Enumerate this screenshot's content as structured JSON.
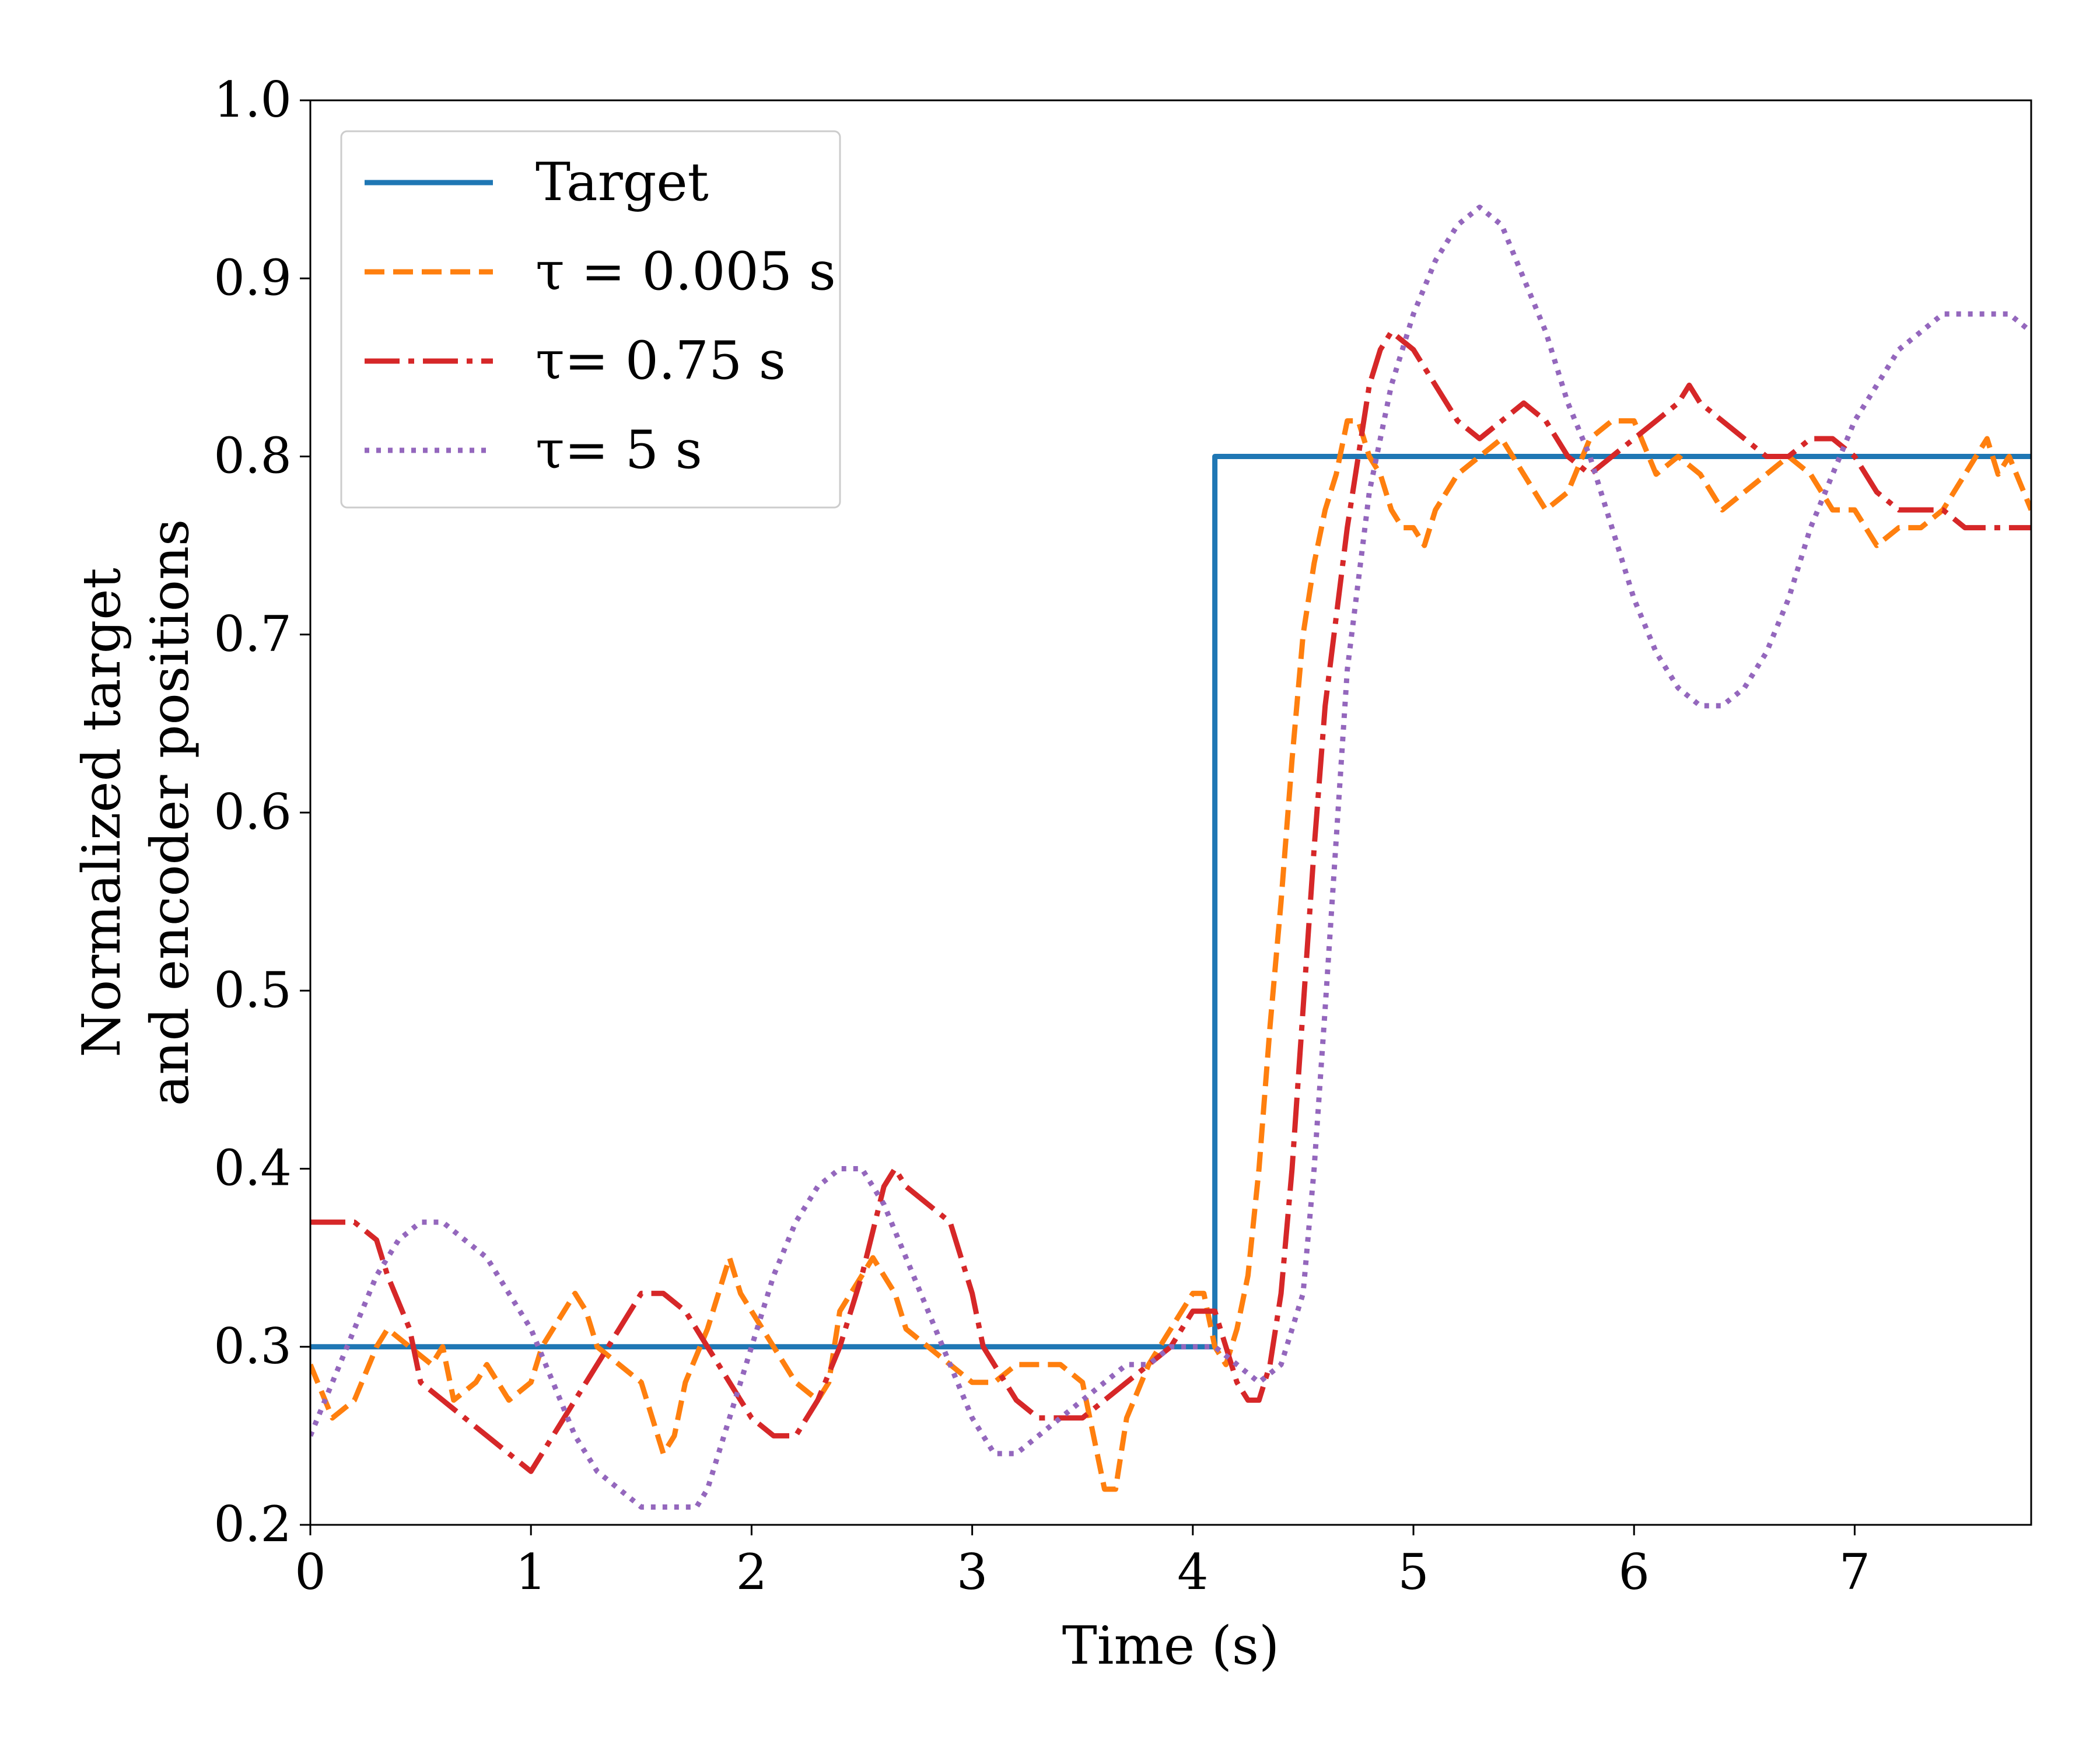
{
  "chart_data": {
    "type": "line",
    "title": "",
    "xlabel": "Time (s)",
    "ylabel": [
      "Normalized target",
      "and encoder positions"
    ],
    "xlim": [
      0,
      7.8
    ],
    "ylim": [
      0.2,
      1.0
    ],
    "xticks": [
      0,
      1,
      2,
      3,
      4,
      5,
      6,
      7
    ],
    "xtick_labels": [
      "0",
      "1",
      "2",
      "3",
      "4",
      "5",
      "6",
      "7"
    ],
    "yticks": [
      0.2,
      0.3,
      0.4,
      0.5,
      0.6,
      0.7,
      0.8,
      0.9,
      1.0
    ],
    "ytick_labels": [
      "0.2",
      "0.3",
      "0.4",
      "0.5",
      "0.6",
      "0.7",
      "0.8",
      "0.9",
      "1.0"
    ],
    "legend_position": "top-left",
    "series": [
      {
        "name": "Target",
        "legend_label": "Target",
        "color": "#1f77b4",
        "style": "solid",
        "x": [
          0,
          4.1,
          4.1,
          7.8
        ],
        "y": [
          0.3,
          0.3,
          0.8,
          0.8
        ]
      },
      {
        "name": "tau-0.005",
        "legend_label": "τ = 0.005 s",
        "color": "#ff7f0e",
        "style": "dashed",
        "x": [
          0,
          0.1,
          0.2,
          0.3,
          0.35,
          0.45,
          0.55,
          0.6,
          0.65,
          0.75,
          0.8,
          0.9,
          1.0,
          1.05,
          1.1,
          1.2,
          1.25,
          1.3,
          1.4,
          1.5,
          1.55,
          1.6,
          1.65,
          1.7,
          1.8,
          1.85,
          1.9,
          1.95,
          2.0,
          2.1,
          2.2,
          2.3,
          2.35,
          2.4,
          2.5,
          2.55,
          2.6,
          2.65,
          2.7,
          2.8,
          2.9,
          3.0,
          3.1,
          3.2,
          3.3,
          3.4,
          3.5,
          3.55,
          3.6,
          3.65,
          3.7,
          3.8,
          3.9,
          4.0,
          4.05,
          4.1,
          4.15,
          4.2,
          4.25,
          4.3,
          4.35,
          4.4,
          4.45,
          4.5,
          4.55,
          4.6,
          4.65,
          4.7,
          4.75,
          4.8,
          4.85,
          4.9,
          4.95,
          5.0,
          5.05,
          5.1,
          5.2,
          5.3,
          5.4,
          5.5,
          5.6,
          5.7,
          5.8,
          5.9,
          6.0,
          6.1,
          6.2,
          6.3,
          6.4,
          6.5,
          6.6,
          6.7,
          6.8,
          6.9,
          7.0,
          7.1,
          7.2,
          7.3,
          7.4,
          7.5,
          7.55,
          7.6,
          7.65,
          7.7,
          7.8
        ],
        "y": [
          0.29,
          0.26,
          0.27,
          0.3,
          0.31,
          0.3,
          0.29,
          0.3,
          0.27,
          0.28,
          0.29,
          0.27,
          0.28,
          0.3,
          0.31,
          0.33,
          0.32,
          0.3,
          0.29,
          0.28,
          0.26,
          0.24,
          0.25,
          0.28,
          0.31,
          0.33,
          0.35,
          0.33,
          0.32,
          0.3,
          0.28,
          0.27,
          0.28,
          0.32,
          0.34,
          0.35,
          0.34,
          0.33,
          0.31,
          0.3,
          0.29,
          0.28,
          0.28,
          0.29,
          0.29,
          0.29,
          0.28,
          0.25,
          0.22,
          0.22,
          0.26,
          0.29,
          0.31,
          0.33,
          0.33,
          0.3,
          0.29,
          0.31,
          0.34,
          0.4,
          0.48,
          0.55,
          0.63,
          0.7,
          0.74,
          0.77,
          0.79,
          0.82,
          0.82,
          0.8,
          0.79,
          0.77,
          0.76,
          0.76,
          0.75,
          0.77,
          0.79,
          0.8,
          0.81,
          0.79,
          0.77,
          0.78,
          0.81,
          0.82,
          0.82,
          0.79,
          0.8,
          0.79,
          0.77,
          0.78,
          0.79,
          0.8,
          0.79,
          0.77,
          0.77,
          0.75,
          0.76,
          0.76,
          0.77,
          0.79,
          0.8,
          0.81,
          0.79,
          0.8,
          0.77
        ]
      },
      {
        "name": "tau-0.75",
        "legend_label": "τ= 0.75 s",
        "color": "#d62728",
        "style": "dashdot",
        "x": [
          0,
          0.1,
          0.2,
          0.3,
          0.35,
          0.45,
          0.5,
          0.6,
          0.7,
          0.8,
          0.9,
          1.0,
          1.05,
          1.1,
          1.2,
          1.3,
          1.4,
          1.5,
          1.6,
          1.7,
          1.8,
          1.9,
          2.0,
          2.1,
          2.2,
          2.3,
          2.4,
          2.5,
          2.6,
          2.65,
          2.7,
          2.8,
          2.9,
          3.0,
          3.05,
          3.1,
          3.2,
          3.3,
          3.4,
          3.5,
          3.6,
          3.7,
          3.8,
          3.9,
          4.0,
          4.1,
          4.15,
          4.2,
          4.25,
          4.3,
          4.35,
          4.4,
          4.45,
          4.5,
          4.55,
          4.6,
          4.65,
          4.7,
          4.75,
          4.8,
          4.85,
          4.9,
          5.0,
          5.1,
          5.2,
          5.3,
          5.4,
          5.5,
          5.6,
          5.7,
          5.8,
          5.9,
          6.0,
          6.1,
          6.2,
          6.25,
          6.3,
          6.4,
          6.5,
          6.6,
          6.7,
          6.8,
          6.9,
          7.0,
          7.1,
          7.2,
          7.3,
          7.4,
          7.5,
          7.6,
          7.7,
          7.8
        ],
        "y": [
          0.37,
          0.37,
          0.37,
          0.36,
          0.34,
          0.31,
          0.28,
          0.27,
          0.26,
          0.25,
          0.24,
          0.23,
          0.24,
          0.25,
          0.27,
          0.29,
          0.31,
          0.33,
          0.33,
          0.32,
          0.3,
          0.28,
          0.26,
          0.25,
          0.25,
          0.27,
          0.3,
          0.34,
          0.39,
          0.4,
          0.39,
          0.38,
          0.37,
          0.33,
          0.3,
          0.29,
          0.27,
          0.26,
          0.26,
          0.26,
          0.27,
          0.28,
          0.29,
          0.3,
          0.32,
          0.32,
          0.3,
          0.28,
          0.27,
          0.27,
          0.29,
          0.33,
          0.4,
          0.49,
          0.58,
          0.66,
          0.71,
          0.76,
          0.8,
          0.84,
          0.86,
          0.87,
          0.86,
          0.84,
          0.82,
          0.81,
          0.82,
          0.83,
          0.82,
          0.8,
          0.79,
          0.8,
          0.81,
          0.82,
          0.83,
          0.84,
          0.83,
          0.82,
          0.81,
          0.8,
          0.8,
          0.81,
          0.81,
          0.8,
          0.78,
          0.77,
          0.77,
          0.77,
          0.76,
          0.76,
          0.76,
          0.76
        ]
      },
      {
        "name": "tau-5",
        "legend_label": "τ= 5 s",
        "color": "#9467bd",
        "style": "dotted",
        "x": [
          0,
          0.1,
          0.2,
          0.3,
          0.4,
          0.5,
          0.6,
          0.7,
          0.8,
          0.9,
          1.0,
          1.1,
          1.2,
          1.3,
          1.4,
          1.5,
          1.6,
          1.7,
          1.75,
          1.8,
          1.9,
          2.0,
          2.1,
          2.2,
          2.3,
          2.4,
          2.5,
          2.6,
          2.7,
          2.8,
          2.9,
          3.0,
          3.1,
          3.2,
          3.3,
          3.4,
          3.5,
          3.6,
          3.7,
          3.8,
          3.9,
          4.0,
          4.1,
          4.2,
          4.3,
          4.4,
          4.5,
          4.55,
          4.6,
          4.7,
          4.8,
          4.9,
          5.0,
          5.1,
          5.2,
          5.3,
          5.4,
          5.5,
          5.6,
          5.7,
          5.8,
          5.9,
          6.0,
          6.1,
          6.2,
          6.3,
          6.4,
          6.5,
          6.6,
          6.7,
          6.8,
          6.9,
          7.0,
          7.1,
          7.2,
          7.3,
          7.4,
          7.5,
          7.6,
          7.7,
          7.8
        ],
        "y": [
          0.25,
          0.28,
          0.31,
          0.34,
          0.36,
          0.37,
          0.37,
          0.36,
          0.35,
          0.33,
          0.31,
          0.28,
          0.25,
          0.23,
          0.22,
          0.21,
          0.21,
          0.21,
          0.21,
          0.22,
          0.26,
          0.3,
          0.34,
          0.37,
          0.39,
          0.4,
          0.4,
          0.38,
          0.35,
          0.32,
          0.29,
          0.26,
          0.24,
          0.24,
          0.25,
          0.26,
          0.27,
          0.28,
          0.29,
          0.29,
          0.3,
          0.3,
          0.3,
          0.29,
          0.28,
          0.29,
          0.33,
          0.4,
          0.49,
          0.68,
          0.78,
          0.84,
          0.88,
          0.91,
          0.93,
          0.94,
          0.93,
          0.9,
          0.87,
          0.83,
          0.8,
          0.76,
          0.72,
          0.69,
          0.67,
          0.66,
          0.66,
          0.67,
          0.69,
          0.72,
          0.76,
          0.79,
          0.82,
          0.84,
          0.86,
          0.87,
          0.88,
          0.88,
          0.88,
          0.88,
          0.87
        ]
      }
    ]
  }
}
